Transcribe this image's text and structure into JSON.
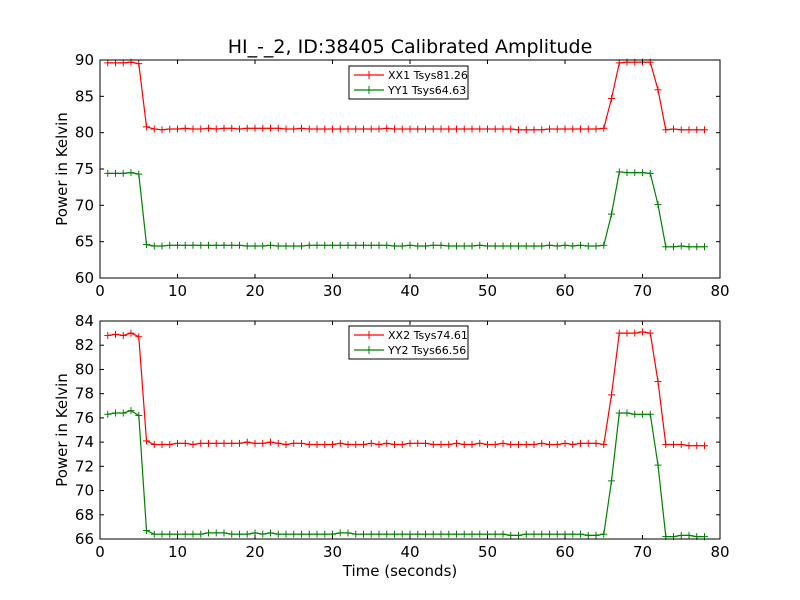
{
  "title": "HI_-_2, ID:38405 Calibrated Amplitude",
  "chart_data": [
    {
      "type": "line",
      "title": "HI_-_2, ID:38405 Calibrated Amplitude",
      "xlabel": "",
      "ylabel": "Power in Kelvin",
      "xlim": [
        0,
        80
      ],
      "ylim": [
        60,
        90
      ],
      "xticks": [
        "0",
        "10",
        "20",
        "30",
        "40",
        "50",
        "60",
        "70",
        "80"
      ],
      "yticks": [
        "60",
        "65",
        "70",
        "75",
        "80",
        "85",
        "90"
      ],
      "grid": false,
      "legend": "top-center",
      "x": [
        1,
        2,
        3,
        4,
        5,
        6,
        7,
        8,
        9,
        10,
        11,
        12,
        13,
        14,
        15,
        16,
        17,
        18,
        19,
        20,
        21,
        22,
        23,
        24,
        25,
        26,
        27,
        28,
        29,
        30,
        31,
        32,
        33,
        34,
        35,
        36,
        37,
        38,
        39,
        40,
        41,
        42,
        43,
        44,
        45,
        46,
        47,
        48,
        49,
        50,
        51,
        52,
        53,
        54,
        55,
        56,
        57,
        58,
        59,
        60,
        61,
        62,
        63,
        64,
        65,
        66,
        67,
        68,
        69,
        70,
        71,
        72,
        73,
        74,
        75,
        76,
        77,
        78
      ],
      "series": [
        {
          "name": "XX1 Tsys81.26",
          "color": "#ff0000",
          "values": [
            89.6,
            89.6,
            89.6,
            89.7,
            89.5,
            80.8,
            80.5,
            80.4,
            80.5,
            80.5,
            80.6,
            80.5,
            80.5,
            80.6,
            80.5,
            80.6,
            80.6,
            80.5,
            80.6,
            80.6,
            80.6,
            80.6,
            80.6,
            80.5,
            80.5,
            80.6,
            80.5,
            80.5,
            80.5,
            80.5,
            80.5,
            80.5,
            80.5,
            80.5,
            80.5,
            80.5,
            80.6,
            80.5,
            80.5,
            80.5,
            80.5,
            80.5,
            80.5,
            80.5,
            80.5,
            80.5,
            80.5,
            80.5,
            80.5,
            80.5,
            80.5,
            80.5,
            80.5,
            80.4,
            80.4,
            80.4,
            80.4,
            80.5,
            80.5,
            80.5,
            80.5,
            80.5,
            80.5,
            80.5,
            80.6,
            84.7,
            89.6,
            89.7,
            89.7,
            89.7,
            89.7,
            85.9,
            80.4,
            80.5,
            80.4,
            80.4,
            80.4,
            80.4
          ]
        },
        {
          "name": "YY1 Tsys64.63",
          "color": "#008000",
          "values": [
            74.4,
            74.4,
            74.4,
            74.5,
            74.3,
            64.6,
            64.4,
            64.4,
            64.5,
            64.5,
            64.5,
            64.5,
            64.5,
            64.5,
            64.5,
            64.5,
            64.5,
            64.5,
            64.4,
            64.4,
            64.4,
            64.5,
            64.4,
            64.4,
            64.4,
            64.4,
            64.5,
            64.5,
            64.5,
            64.5,
            64.5,
            64.5,
            64.5,
            64.5,
            64.5,
            64.5,
            64.5,
            64.4,
            64.4,
            64.5,
            64.4,
            64.4,
            64.5,
            64.5,
            64.4,
            64.4,
            64.4,
            64.4,
            64.5,
            64.4,
            64.4,
            64.4,
            64.4,
            64.4,
            64.4,
            64.4,
            64.4,
            64.5,
            64.4,
            64.5,
            64.4,
            64.5,
            64.4,
            64.4,
            64.5,
            68.8,
            74.6,
            74.5,
            74.5,
            74.5,
            74.4,
            70.1,
            64.3,
            64.3,
            64.4,
            64.3,
            64.3,
            64.3
          ]
        }
      ]
    },
    {
      "type": "line",
      "title": "",
      "xlabel": "Time (seconds)",
      "ylabel": "Power in Kelvin",
      "xlim": [
        0,
        80
      ],
      "ylim": [
        66,
        84
      ],
      "xticks": [
        "0",
        "10",
        "20",
        "30",
        "40",
        "50",
        "60",
        "70",
        "80"
      ],
      "yticks": [
        "66",
        "68",
        "70",
        "72",
        "74",
        "76",
        "78",
        "80",
        "82",
        "84"
      ],
      "grid": false,
      "legend": "top-center",
      "x": [
        1,
        2,
        3,
        4,
        5,
        6,
        7,
        8,
        9,
        10,
        11,
        12,
        13,
        14,
        15,
        16,
        17,
        18,
        19,
        20,
        21,
        22,
        23,
        24,
        25,
        26,
        27,
        28,
        29,
        30,
        31,
        32,
        33,
        34,
        35,
        36,
        37,
        38,
        39,
        40,
        41,
        42,
        43,
        44,
        45,
        46,
        47,
        48,
        49,
        50,
        51,
        52,
        53,
        54,
        55,
        56,
        57,
        58,
        59,
        60,
        61,
        62,
        63,
        64,
        65,
        66,
        67,
        68,
        69,
        70,
        71,
        72,
        73,
        74,
        75,
        76,
        77,
        78
      ],
      "series": [
        {
          "name": "XX2 Tsys74.61",
          "color": "#ff0000",
          "values": [
            82.8,
            82.9,
            82.8,
            83.0,
            82.7,
            74.1,
            73.8,
            73.8,
            73.8,
            73.9,
            73.9,
            73.8,
            73.9,
            73.9,
            73.9,
            73.9,
            73.9,
            73.9,
            74.0,
            73.9,
            73.9,
            74.0,
            73.9,
            73.8,
            73.9,
            73.9,
            73.8,
            73.8,
            73.8,
            73.8,
            73.9,
            73.8,
            73.8,
            73.8,
            73.9,
            73.8,
            73.9,
            73.8,
            73.8,
            73.9,
            73.9,
            73.9,
            73.8,
            73.8,
            73.8,
            73.9,
            73.8,
            73.8,
            73.9,
            73.8,
            73.8,
            73.9,
            73.8,
            73.8,
            73.8,
            73.8,
            73.9,
            73.8,
            73.8,
            73.9,
            73.8,
            73.9,
            73.9,
            73.9,
            73.8,
            77.9,
            83.0,
            83.0,
            83.0,
            83.1,
            83.0,
            79.0,
            73.8,
            73.8,
            73.8,
            73.7,
            73.7,
            73.7
          ]
        },
        {
          "name": "YY2 Tsys66.56",
          "color": "#008000",
          "values": [
            76.3,
            76.4,
            76.4,
            76.6,
            76.2,
            66.7,
            66.4,
            66.4,
            66.4,
            66.4,
            66.4,
            66.4,
            66.4,
            66.5,
            66.5,
            66.5,
            66.4,
            66.4,
            66.4,
            66.5,
            66.4,
            66.5,
            66.4,
            66.4,
            66.4,
            66.4,
            66.4,
            66.4,
            66.4,
            66.4,
            66.5,
            66.5,
            66.4,
            66.4,
            66.4,
            66.4,
            66.4,
            66.4,
            66.4,
            66.4,
            66.4,
            66.4,
            66.4,
            66.4,
            66.4,
            66.4,
            66.4,
            66.4,
            66.4,
            66.4,
            66.4,
            66.4,
            66.3,
            66.3,
            66.4,
            66.4,
            66.4,
            66.4,
            66.4,
            66.4,
            66.4,
            66.4,
            66.3,
            66.3,
            66.4,
            70.8,
            76.4,
            76.4,
            76.3,
            76.3,
            76.3,
            72.1,
            66.2,
            66.2,
            66.3,
            66.3,
            66.2,
            66.2
          ]
        }
      ]
    }
  ]
}
